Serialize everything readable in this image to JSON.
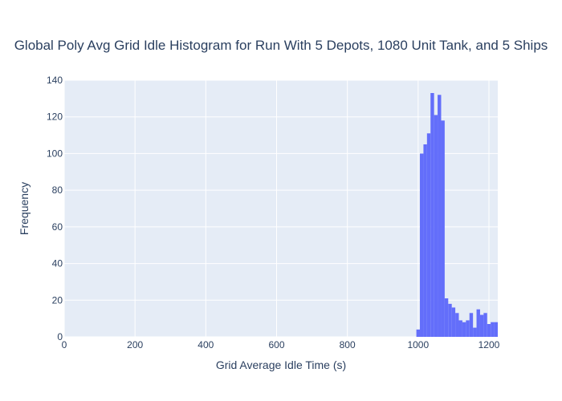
{
  "chart_data": {
    "type": "histogram",
    "title": "Global Poly Avg Grid Idle Histogram for Run With 5 Depots, 1080 Unit Tank, and 5 Ships",
    "xlabel": "Grid Average Idle Time (s)",
    "ylabel": "Frequency",
    "xlim": [
      0,
      1225
    ],
    "ylim": [
      0,
      140
    ],
    "x_ticks": [
      "0",
      "200",
      "400",
      "600",
      "800",
      "1000",
      "1200"
    ],
    "y_ticks": [
      "0",
      "20",
      "40",
      "60",
      "80",
      "100",
      "120",
      "140"
    ],
    "grid": true,
    "bin_width": 10,
    "bins": [
      {
        "x0": 995,
        "x1": 1005,
        "count": 4
      },
      {
        "x0": 1005,
        "x1": 1015,
        "count": 100
      },
      {
        "x0": 1015,
        "x1": 1025,
        "count": 105
      },
      {
        "x0": 1025,
        "x1": 1035,
        "count": 111
      },
      {
        "x0": 1035,
        "x1": 1045,
        "count": 133
      },
      {
        "x0": 1045,
        "x1": 1055,
        "count": 121
      },
      {
        "x0": 1055,
        "x1": 1065,
        "count": 132
      },
      {
        "x0": 1065,
        "x1": 1075,
        "count": 118
      },
      {
        "x0": 1075,
        "x1": 1085,
        "count": 21
      },
      {
        "x0": 1085,
        "x1": 1095,
        "count": 18
      },
      {
        "x0": 1095,
        "x1": 1105,
        "count": 16
      },
      {
        "x0": 1105,
        "x1": 1115,
        "count": 13
      },
      {
        "x0": 1115,
        "x1": 1125,
        "count": 9
      },
      {
        "x0": 1125,
        "x1": 1135,
        "count": 8
      },
      {
        "x0": 1135,
        "x1": 1145,
        "count": 9
      },
      {
        "x0": 1145,
        "x1": 1155,
        "count": 13
      },
      {
        "x0": 1155,
        "x1": 1165,
        "count": 5
      },
      {
        "x0": 1165,
        "x1": 1175,
        "count": 15
      },
      {
        "x0": 1175,
        "x1": 1185,
        "count": 12
      },
      {
        "x0": 1185,
        "x1": 1195,
        "count": 13
      },
      {
        "x0": 1195,
        "x1": 1205,
        "count": 7
      },
      {
        "x0": 1205,
        "x1": 1215,
        "count": 8
      },
      {
        "x0": 1215,
        "x1": 1225,
        "count": 8
      }
    ],
    "colors": {
      "bar": "#636efa",
      "plot_bg": "#e5ecf6",
      "grid": "#ffffff",
      "text": "#2a3f5f"
    }
  }
}
